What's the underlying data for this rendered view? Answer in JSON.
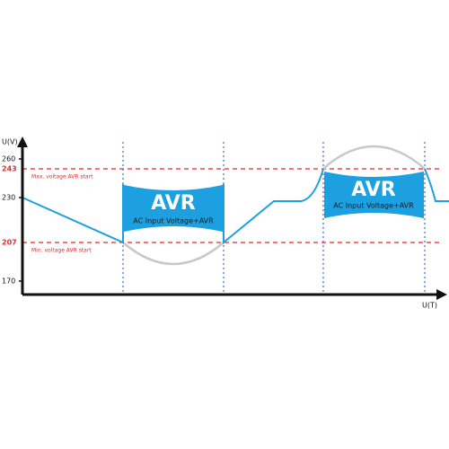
{
  "axes": {
    "y_label": "U(V)",
    "x_label": "U(T)",
    "y_ticks": [
      260,
      243,
      230,
      207,
      170
    ]
  },
  "annotations": {
    "max": "Max. voltage AVR start",
    "min": "Min. voltage AVR start"
  },
  "boxes": [
    {
      "title": "AVR",
      "subtitle": "AC Input Voltage+AVR"
    },
    {
      "title": "AVR",
      "subtitle": "AC Input Voltage+AVR"
    }
  ]
}
